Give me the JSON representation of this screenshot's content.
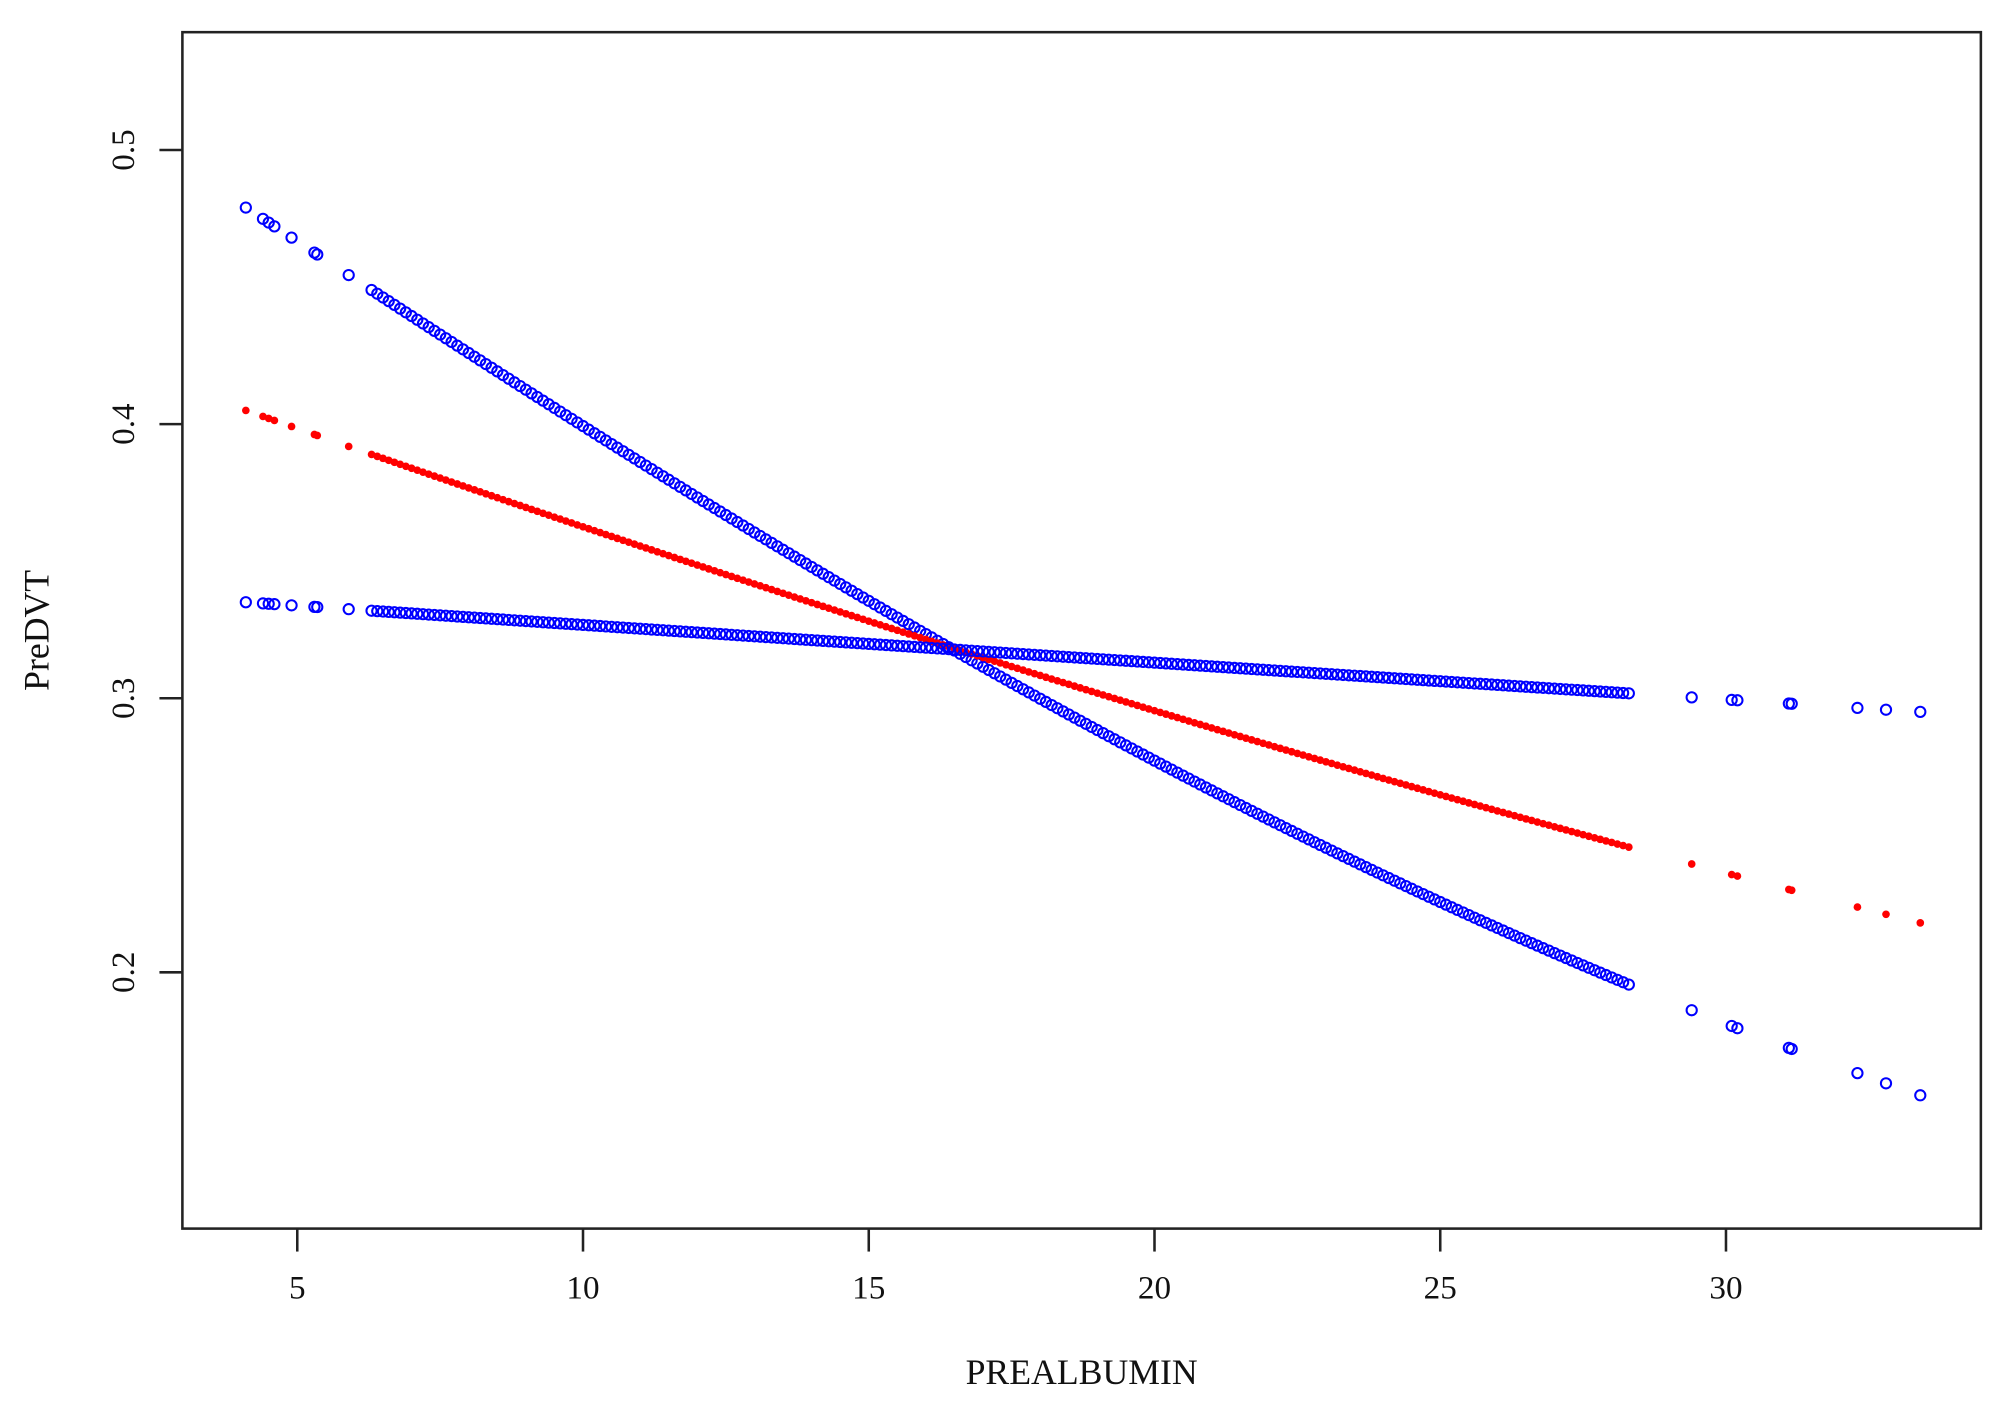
{
  "chart_data": {
    "type": "scatter",
    "title": "",
    "xlabel": "PREALBUMIN",
    "ylabel": "PreDVT",
    "xlim": [
      2.99,
      34.46
    ],
    "ylim": [
      0.1065,
      0.543
    ],
    "grid": false,
    "xticks": [
      5,
      10,
      15,
      20,
      25,
      30
    ],
    "xtick_labels": [
      "5",
      "10",
      "15",
      "20",
      "25",
      "30"
    ],
    "yticks": [
      0.2,
      0.3,
      0.4,
      0.5
    ],
    "ytick_labels": [
      "0.2",
      "0.3",
      "0.4",
      "0.5"
    ],
    "x_sparse": [
      4.1,
      4.4,
      4.5,
      4.6,
      4.9,
      5.3,
      5.35,
      5.9,
      6.3,
      6.4,
      29.4,
      30.1,
      30.2,
      31.1,
      31.15,
      32.3,
      32.8,
      33.4
    ],
    "x_dense_range": [
      6.5,
      28.3,
      0.1
    ],
    "series": [
      {
        "key": "upper",
        "marker": "open-circle",
        "color": "#0000ff",
        "model": "logistic",
        "logit_intercept": 0.1414,
        "logit_slope": -0.05498,
        "y_at_xmin": 0.479,
        "y_at_xmax": 0.155
      },
      {
        "key": "fit",
        "marker": "filled-circle",
        "color": "#ff0000",
        "model": "logistic",
        "logit_intercept": -0.2598,
        "logit_slope": -0.03046,
        "y_at_xmin": 0.405,
        "y_at_xmax": 0.218
      },
      {
        "key": "lower",
        "marker": "open-circle",
        "color": "#0000ff",
        "model": "logistic",
        "logit_intercept": -0.6596,
        "logit_slope": -0.006334,
        "y_at_xmin": 0.335,
        "y_at_xmax": 0.295
      }
    ]
  }
}
